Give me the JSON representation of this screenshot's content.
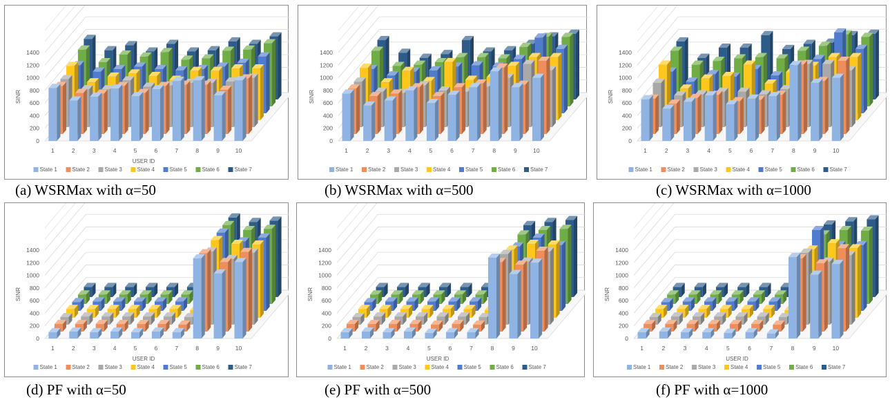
{
  "chart_data": [
    {
      "type": "bar",
      "title": "",
      "caption": "(a)   WSRMax with α=50",
      "xlabel": "USER ID",
      "ylabel": "SINR",
      "ylim": [
        0,
        1400
      ],
      "yticks": [
        0,
        200,
        400,
        600,
        800,
        1000,
        1200,
        1400
      ],
      "categories": [
        "1",
        "2",
        "3",
        "4",
        "5",
        "6",
        "7",
        "8",
        "9",
        "10"
      ],
      "legend": "bottom",
      "grid": true,
      "series": [
        {
          "name": "State 1",
          "color": "#8fb4e3",
          "values": [
            840,
            640,
            700,
            830,
            710,
            820,
            950,
            960,
            720,
            960
          ]
        },
        {
          "name": "State 2",
          "color": "#f08e5b",
          "values": [
            760,
            650,
            640,
            760,
            650,
            760,
            780,
            780,
            700,
            880
          ]
        },
        {
          "name": "State 3",
          "color": "#a9a9a9",
          "values": [
            760,
            600,
            600,
            740,
            640,
            660,
            700,
            700,
            720,
            780
          ]
        },
        {
          "name": "State 4",
          "color": "#ffc71c",
          "values": [
            860,
            600,
            690,
            740,
            700,
            640,
            780,
            780,
            820,
            820
          ]
        },
        {
          "name": "State 5",
          "color": "#4f7ccf",
          "values": [
            760,
            660,
            700,
            740,
            700,
            680,
            700,
            740,
            800,
            900
          ]
        },
        {
          "name": "State 6",
          "color": "#70ad47",
          "values": [
            900,
            700,
            820,
            790,
            860,
            740,
            760,
            880,
            900,
            1000
          ]
        },
        {
          "name": "State 7",
          "color": "#2e5c8a",
          "values": [
            960,
            780,
            860,
            760,
            880,
            760,
            780,
            920,
            880,
            1000
          ]
        }
      ]
    },
    {
      "type": "bar",
      "title": "",
      "caption": "(b) WSRMax with α=500",
      "xlabel": "",
      "ylabel": "SINR",
      "ylim": [
        0,
        1400
      ],
      "yticks": [
        0,
        200,
        400,
        600,
        800,
        1000,
        1200,
        1400
      ],
      "categories": [
        "1",
        "2",
        "3",
        "4",
        "5",
        "6",
        "7",
        "8",
        "9",
        "10"
      ],
      "legend": "bottom",
      "grid": true,
      "series": [
        {
          "name": "State 1",
          "color": "#8fb4e3",
          "values": [
            750,
            560,
            640,
            800,
            600,
            730,
            850,
            1100,
            850,
            1000
          ]
        },
        {
          "name": "State 2",
          "color": "#f08e5b",
          "values": [
            720,
            600,
            640,
            740,
            600,
            740,
            800,
            1050,
            780,
            1160
          ]
        },
        {
          "name": "State 3",
          "color": "#a9a9a9",
          "values": [
            720,
            560,
            540,
            660,
            580,
            560,
            640,
            780,
            1000,
            900
          ]
        },
        {
          "name": "State 4",
          "color": "#ffc71c",
          "values": [
            830,
            600,
            780,
            620,
            920,
            640,
            680,
            860,
            1000,
            1000
          ]
        },
        {
          "name": "State 5",
          "color": "#4f7ccf",
          "values": [
            700,
            600,
            660,
            680,
            740,
            760,
            740,
            860,
            1200,
            1020
          ]
        },
        {
          "name": "State 6",
          "color": "#70ad47",
          "values": [
            880,
            640,
            660,
            700,
            780,
            780,
            760,
            940,
            1100,
            1100
          ]
        },
        {
          "name": "State 7",
          "color": "#2e5c8a",
          "values": [
            940,
            740,
            660,
            720,
            940,
            760,
            780,
            880,
            1000,
            1040
          ]
        }
      ]
    },
    {
      "type": "bar",
      "title": "",
      "caption": "(c) WSRMax with α=1000",
      "xlabel": "",
      "ylabel": "SINR",
      "ylim": [
        0,
        1400
      ],
      "yticks": [
        0,
        200,
        400,
        600,
        800,
        1000,
        1200,
        1400
      ],
      "categories": [
        "1",
        "2",
        "3",
        "4",
        "5",
        "6",
        "7",
        "8",
        "9",
        "10"
      ],
      "legend": "bottom",
      "grid": true,
      "series": [
        {
          "name": "State 1",
          "color": "#8fb4e3",
          "values": [
            660,
            510,
            620,
            720,
            580,
            670,
            710,
            1200,
            920,
            1000
          ]
        },
        {
          "name": "State 2",
          "color": "#f08e5b",
          "values": [
            560,
            480,
            570,
            620,
            520,
            540,
            620,
            1100,
            840,
            1160
          ]
        },
        {
          "name": "State 3",
          "color": "#a9a9a9",
          "values": [
            700,
            500,
            520,
            560,
            560,
            520,
            600,
            1000,
            1000,
            900
          ]
        },
        {
          "name": "State 4",
          "color": "#ffc71c",
          "values": [
            880,
            500,
            660,
            700,
            880,
            580,
            760,
            860,
            1000,
            1000
          ]
        },
        {
          "name": "State 5",
          "color": "#4f7ccf",
          "values": [
            660,
            500,
            620,
            580,
            700,
            600,
            680,
            860,
            1280,
            1020
          ]
        },
        {
          "name": "State 6",
          "color": "#70ad47",
          "values": [
            880,
            660,
            720,
            760,
            780,
            760,
            880,
            960,
            1140,
            1100
          ]
        },
        {
          "name": "State 7",
          "color": "#2e5c8a",
          "values": [
            920,
            660,
            820,
            820,
            1020,
            800,
            880,
            900,
            1020,
            1040
          ]
        }
      ]
    },
    {
      "type": "bar",
      "title": "",
      "caption": "(d) PF with α=50",
      "xlabel": "USER ID",
      "ylabel": "SINR",
      "ylim": [
        0,
        1400
      ],
      "yticks": [
        0,
        200,
        400,
        600,
        800,
        1000,
        1200,
        1400
      ],
      "categories": [
        "1",
        "2",
        "3",
        "4",
        "5",
        "6",
        "7",
        "8",
        "9",
        "10"
      ],
      "legend": "bottom",
      "grid": true,
      "series": [
        {
          "name": "State 1",
          "color": "#8fb4e3",
          "values": [
            100,
            110,
            100,
            110,
            100,
            110,
            100,
            1270,
            1030,
            1210
          ]
        },
        {
          "name": "State 2",
          "color": "#f08e5b",
          "values": [
            120,
            120,
            120,
            120,
            120,
            120,
            110,
            1240,
            1100,
            1260
          ]
        },
        {
          "name": "State 3",
          "color": "#a9a9a9",
          "values": [
            120,
            130,
            130,
            130,
            130,
            130,
            120,
            1160,
            1040,
            1140
          ]
        },
        {
          "name": "State 4",
          "color": "#ffc71c",
          "values": [
            140,
            140,
            140,
            140,
            140,
            140,
            120,
            1230,
            1170,
            1160
          ]
        },
        {
          "name": "State 5",
          "color": "#4f7ccf",
          "values": [
            140,
            150,
            150,
            150,
            150,
            150,
            130,
            1240,
            1100,
            1160
          ]
        },
        {
          "name": "State 6",
          "color": "#70ad47",
          "values": [
            150,
            150,
            150,
            150,
            150,
            150,
            140,
            1250,
            1170,
            1190
          ]
        },
        {
          "name": "State 7",
          "color": "#2e5c8a",
          "values": [
            160,
            160,
            160,
            160,
            160,
            160,
            150,
            1260,
            1190,
            1210
          ]
        }
      ]
    },
    {
      "type": "bar",
      "title": "",
      "caption": "(e) PF with α=500",
      "xlabel": "USER ID",
      "ylabel": "SINR",
      "ylim": [
        0,
        1400
      ],
      "yticks": [
        0,
        200,
        400,
        600,
        800,
        1000,
        1200,
        1400
      ],
      "categories": [
        "1",
        "2",
        "3",
        "4",
        "5",
        "6",
        "7",
        "8",
        "9",
        "10"
      ],
      "legend": "bottom",
      "grid": true,
      "series": [
        {
          "name": "State 1",
          "color": "#8fb4e3",
          "values": [
            100,
            110,
            100,
            110,
            90,
            100,
            100,
            1280,
            1020,
            1200
          ]
        },
        {
          "name": "State 2",
          "color": "#f08e5b",
          "values": [
            120,
            120,
            120,
            120,
            110,
            120,
            110,
            1100,
            1060,
            1280
          ]
        },
        {
          "name": "State 3",
          "color": "#a9a9a9",
          "values": [
            120,
            130,
            130,
            130,
            130,
            130,
            120,
            1120,
            1000,
            1160
          ]
        },
        {
          "name": "State 4",
          "color": "#ffc71c",
          "values": [
            140,
            140,
            140,
            140,
            140,
            140,
            120,
            1080,
            1170,
            1160
          ]
        },
        {
          "name": "State 5",
          "color": "#4f7ccf",
          "values": [
            140,
            150,
            150,
            150,
            150,
            150,
            130,
            1020,
            1160,
            1040
          ]
        },
        {
          "name": "State 6",
          "color": "#70ad47",
          "values": [
            150,
            150,
            150,
            150,
            150,
            150,
            140,
            1100,
            1170,
            1190
          ]
        },
        {
          "name": "State 7",
          "color": "#2e5c8a",
          "values": [
            160,
            160,
            160,
            160,
            160,
            160,
            150,
            1140,
            1190,
            1220
          ]
        }
      ]
    },
    {
      "type": "bar",
      "title": "",
      "caption": "(f) PF with α=1000",
      "xlabel": "USER ID",
      "ylabel": "SINR",
      "ylim": [
        0,
        1400
      ],
      "yticks": [
        0,
        200,
        400,
        600,
        800,
        1000,
        1200,
        1400
      ],
      "categories": [
        "1",
        "2",
        "3",
        "4",
        "5",
        "6",
        "7",
        "8",
        "9",
        "10"
      ],
      "legend": "bottom",
      "grid": true,
      "series": [
        {
          "name": "State 1",
          "color": "#8fb4e3",
          "values": [
            100,
            110,
            100,
            100,
            90,
            100,
            80,
            1290,
            1010,
            1180
          ]
        },
        {
          "name": "State 2",
          "color": "#f08e5b",
          "values": [
            120,
            120,
            120,
            120,
            120,
            120,
            110,
            1160,
            1080,
            1320
          ]
        },
        {
          "name": "State 3",
          "color": "#a9a9a9",
          "values": [
            120,
            130,
            130,
            130,
            130,
            130,
            120,
            1140,
            1000,
            1100
          ]
        },
        {
          "name": "State 4",
          "color": "#ffc71c",
          "values": [
            140,
            140,
            140,
            140,
            140,
            140,
            120,
            1080,
            1180,
            1100
          ]
        },
        {
          "name": "State 5",
          "color": "#4f7ccf",
          "values": [
            140,
            150,
            150,
            150,
            150,
            150,
            130,
            1280,
            1040,
            1040
          ]
        },
        {
          "name": "State 6",
          "color": "#70ad47",
          "values": [
            150,
            150,
            150,
            150,
            150,
            150,
            140,
            1100,
            1170,
            1160
          ]
        },
        {
          "name": "State 7",
          "color": "#2e5c8a",
          "values": [
            160,
            160,
            160,
            160,
            160,
            160,
            150,
            1150,
            1200,
            1230
          ]
        }
      ]
    }
  ]
}
